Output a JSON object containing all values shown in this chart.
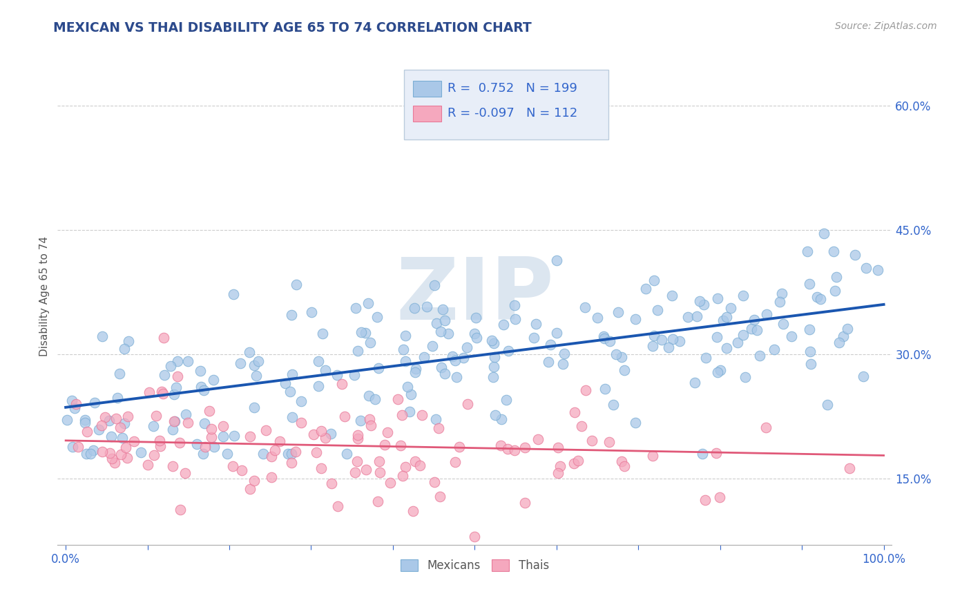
{
  "title": "MEXICAN VS THAI DISABILITY AGE 65 TO 74 CORRELATION CHART",
  "source": "Source: ZipAtlas.com",
  "ylabel": "Disability Age 65 to 74",
  "xlim": [
    -0.01,
    1.01
  ],
  "ylim": [
    0.07,
    0.67
  ],
  "yticks": [
    0.15,
    0.3,
    0.45,
    0.6
  ],
  "ytick_labels": [
    "15.0%",
    "30.0%",
    "45.0%",
    "60.0%"
  ],
  "xtick_positions": [
    0.0,
    0.1,
    0.2,
    0.3,
    0.4,
    0.5,
    0.6,
    0.7,
    0.8,
    0.9,
    1.0
  ],
  "xtick_edge_labels": {
    "0": "0.0%",
    "10": "100.0%"
  },
  "mexican_R": 0.752,
  "mexican_N": 199,
  "thai_R": -0.097,
  "thai_N": 112,
  "mexican_color": "#aac8e8",
  "mexican_edge_color": "#7aadd4",
  "mexican_line_color": "#1a56b0",
  "thai_color": "#f5a8be",
  "thai_edge_color": "#e87898",
  "thai_line_color": "#e05878",
  "title_color": "#2c4a8c",
  "source_color": "#999999",
  "axis_label_color": "#555555",
  "tick_color": "#3366cc",
  "background_color": "#ffffff",
  "grid_color": "#cccccc",
  "watermark_color": "#dce6f0",
  "mexican_trend_x": [
    0.0,
    1.0
  ],
  "mexican_trend_y": [
    0.236,
    0.36
  ],
  "thai_trend_x": [
    0.0,
    1.0
  ],
  "thai_trend_y": [
    0.196,
    0.178
  ],
  "legend_box_color": "#e8eef8",
  "legend_border_color": "#bbccdd"
}
